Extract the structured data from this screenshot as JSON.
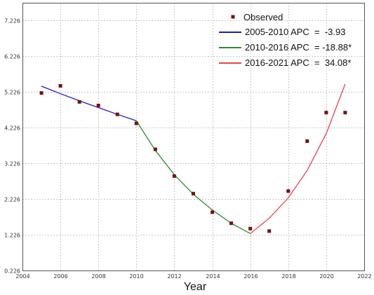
{
  "chart_data": {
    "type": "line",
    "xlabel": "Year",
    "ylabel": "",
    "xlim": [
      2004,
      2022
    ],
    "ylim": [
      0.226,
      7.726
    ],
    "x_ticks": [
      "2004",
      "2006",
      "2008",
      "2010",
      "2012",
      "2014",
      "2016",
      "2018",
      "2020",
      "2022"
    ],
    "y_ticks": [
      "0.226",
      "1.226",
      "2.226",
      "3.226",
      "4.226",
      "5.226",
      "6.226",
      "7.226"
    ],
    "grid": true,
    "legend_position": "top-right",
    "observed": {
      "name": "Observed",
      "color": "#7a0f0f",
      "x": [
        2005,
        2006,
        2007,
        2008,
        2009,
        2010,
        2011,
        2012,
        2013,
        2014,
        2015,
        2016,
        2017,
        2018,
        2019,
        2020,
        2021
      ],
      "y": [
        5.2,
        5.4,
        4.95,
        4.85,
        4.6,
        4.35,
        3.62,
        2.87,
        2.38,
        1.86,
        1.55,
        1.4,
        1.33,
        2.45,
        3.85,
        4.65,
        4.65
      ]
    },
    "segments": [
      {
        "name": "2005-2010 APC  =  -3.93",
        "color": "#1a1acd",
        "x": [
          2005,
          2006,
          2007,
          2008,
          2009,
          2010
        ],
        "y": [
          5.39,
          5.18,
          4.98,
          4.79,
          4.6,
          4.42
        ]
      },
      {
        "name": "2010-2016 APC  = -18.88*",
        "color": "#2e8b2e",
        "x": [
          2010,
          2011,
          2012,
          2013,
          2014,
          2015,
          2016
        ],
        "y": [
          4.42,
          3.59,
          2.91,
          2.36,
          1.92,
          1.55,
          1.26
        ]
      },
      {
        "name": "2016-2021 APC  =  34.08*",
        "color": "#e8434c",
        "x": [
          2016,
          2017,
          2018,
          2019,
          2020,
          2021
        ],
        "y": [
          1.26,
          1.69,
          2.26,
          3.03,
          4.06,
          5.45
        ]
      }
    ]
  }
}
